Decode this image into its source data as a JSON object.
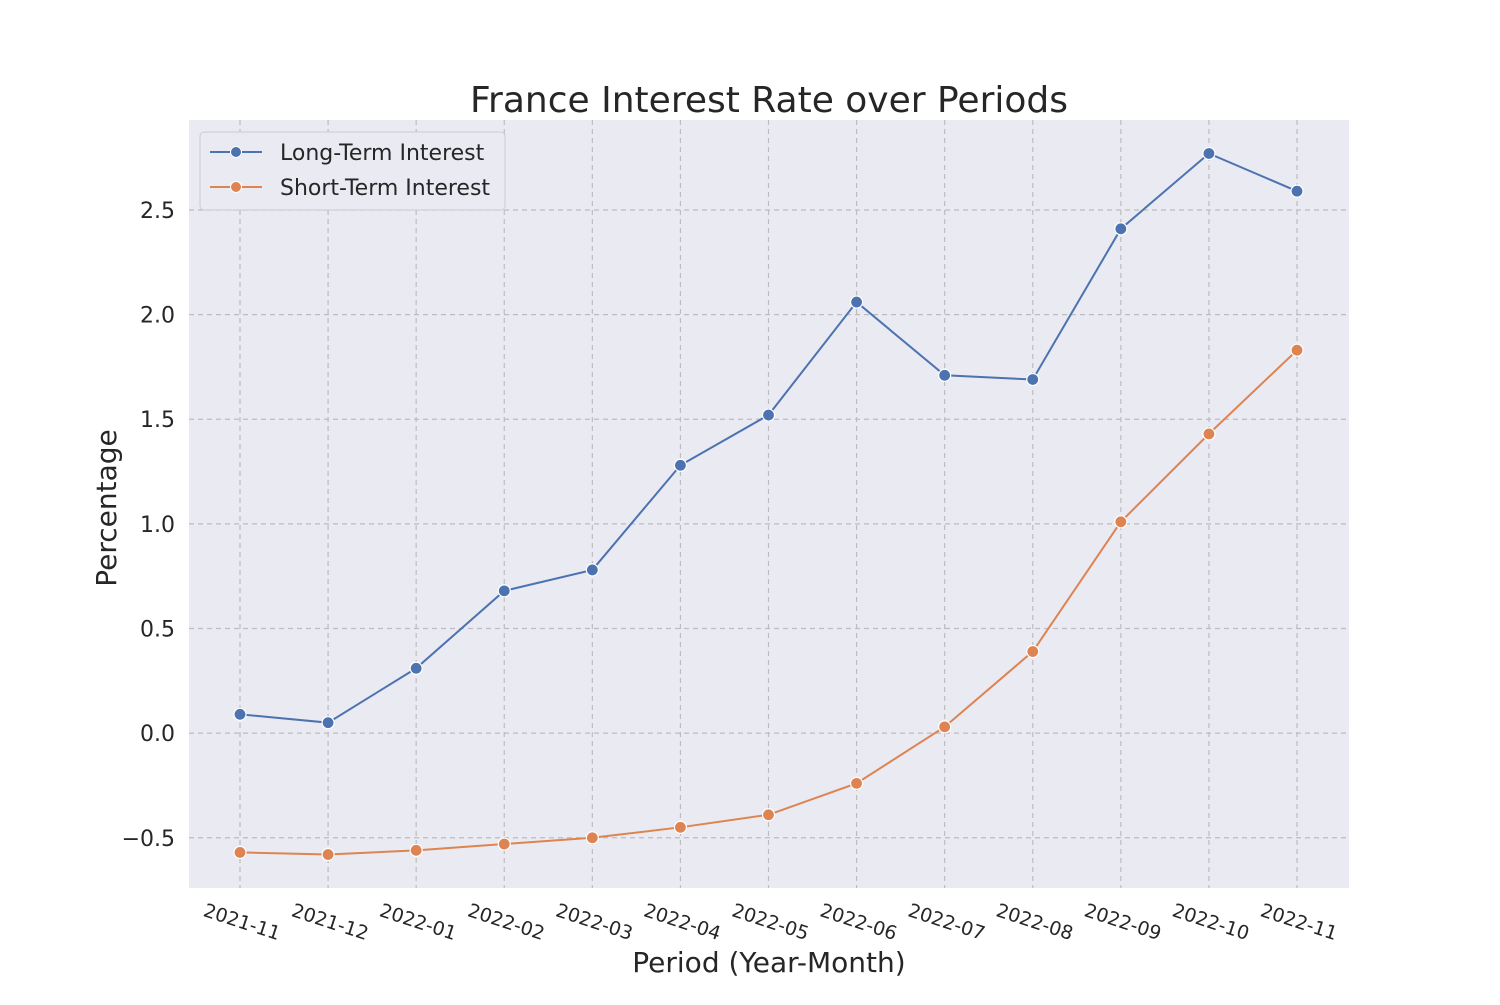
{
  "chart_data": {
    "type": "line",
    "title": "France Interest Rate over Periods",
    "xlabel": "Period (Year-Month)",
    "ylabel": "Percentage",
    "categories": [
      "2021-11",
      "2021-12",
      "2022-01",
      "2022-02",
      "2022-03",
      "2022-04",
      "2022-05",
      "2022-06",
      "2022-07",
      "2022-08",
      "2022-09",
      "2022-10",
      "2022-11"
    ],
    "series": [
      {
        "name": "Long-Term Interest",
        "color": "#4c72b0",
        "values": [
          0.09,
          0.05,
          0.31,
          0.68,
          0.78,
          1.28,
          1.52,
          2.06,
          1.71,
          1.69,
          2.41,
          2.77,
          2.59
        ]
      },
      {
        "name": "Short-Term Interest",
        "color": "#dd8452",
        "values": [
          -0.57,
          -0.58,
          -0.56,
          -0.53,
          -0.5,
          -0.45,
          -0.39,
          -0.24,
          0.03,
          0.39,
          1.01,
          1.43,
          1.83
        ]
      }
    ],
    "yticks": [
      -0.5,
      0.0,
      0.5,
      1.0,
      1.5,
      2.0,
      2.5
    ],
    "ytick_labels": [
      "−0.5",
      "0.0",
      "0.5",
      "1.0",
      "1.5",
      "2.0",
      "2.5"
    ],
    "ylim": [
      -0.74,
      2.93
    ],
    "grid": true,
    "legend_position": "top-left",
    "background_color": "#eaeaf2"
  }
}
